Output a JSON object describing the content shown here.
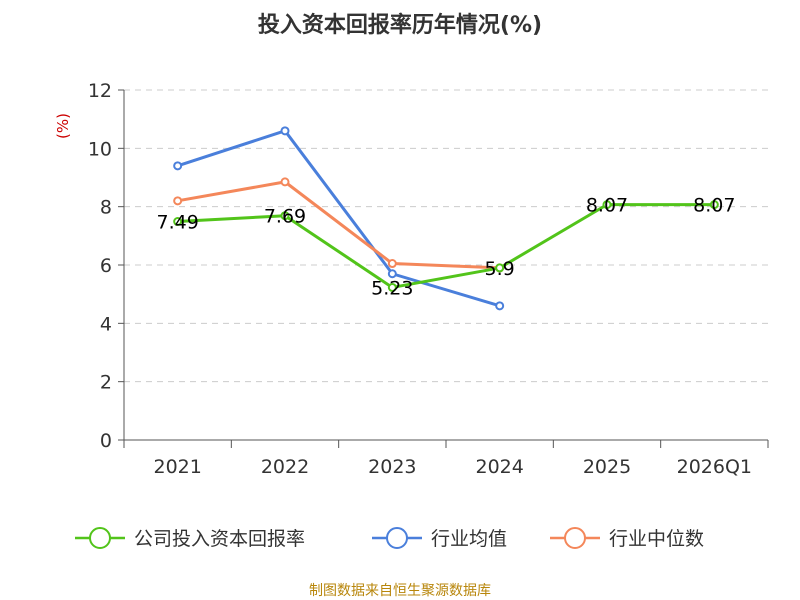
{
  "chart_data": {
    "type": "line",
    "title": "投入资本回报率历年情况(%)",
    "ylabel": "(%)",
    "xlabel": "",
    "ylim": [
      0,
      12
    ],
    "yticks": [
      0,
      2,
      4,
      6,
      8,
      10,
      12
    ],
    "grid": true,
    "categories": [
      "2021",
      "2022",
      "2023",
      "2024",
      "2025",
      "2026Q1"
    ],
    "series": [
      {
        "name": "公司投入资本回报率",
        "color": "#52c41a",
        "values": [
          7.49,
          7.69,
          5.23,
          5.9,
          8.07,
          8.07
        ],
        "labels": [
          "7.49",
          "7.69",
          "5.23",
          "5.9",
          "8.07",
          "8.07"
        ]
      },
      {
        "name": "行业均值",
        "color": "#4a7fdb",
        "values": [
          9.4,
          10.6,
          5.7,
          4.6,
          null,
          null
        ]
      },
      {
        "name": "行业中位数",
        "color": "#f4875a",
        "values": [
          8.2,
          8.85,
          6.05,
          5.9,
          null,
          null
        ]
      }
    ],
    "legend_position": "bottom"
  },
  "footer": {
    "source": "制图数据来自恒生聚源数据库"
  }
}
